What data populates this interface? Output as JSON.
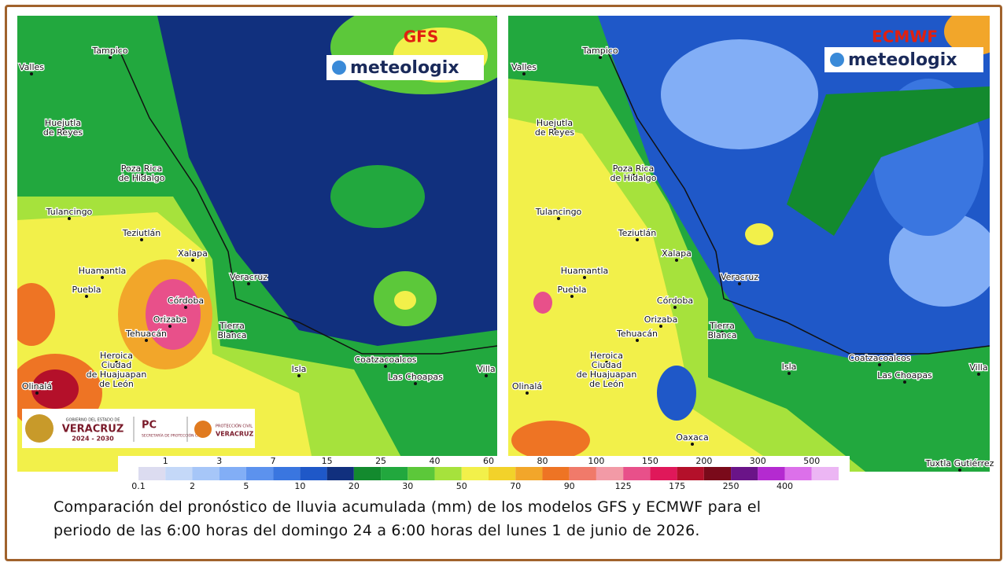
{
  "maps": [
    {
      "model": "GFS",
      "brand": "meteologix",
      "cities": [
        [
          "Tampico"
        ],
        [
          "Valles"
        ],
        [
          "Huejutla",
          "de Reyes"
        ],
        [
          "Poza Rica",
          "de Hidalgo"
        ],
        [
          "Tulancingo"
        ],
        [
          "Teziutlán"
        ],
        [
          "Xalapa"
        ],
        [
          "Huamantla"
        ],
        [
          "Veracruz"
        ],
        [
          "Puebla"
        ],
        [
          "Córdoba"
        ],
        [
          "Orizaba"
        ],
        [
          "Tehuacán"
        ],
        [
          "Tierra",
          "Blanca"
        ],
        [
          "Heroica",
          "Ciudad",
          "de Huajuapan",
          "de León"
        ],
        [
          "Isla"
        ],
        [
          "Coatzacoalcos"
        ],
        [
          "Las Choapas"
        ],
        [
          "Villa"
        ],
        [
          "Olinalá"
        ]
      ]
    },
    {
      "model": "ECMWF",
      "brand": "meteologix",
      "cities": [
        [
          "Tampico"
        ],
        [
          "Valles"
        ],
        [
          "Huejutla",
          "de Reyes"
        ],
        [
          "Poza Rica",
          "de Hidalgo"
        ],
        [
          "Tulancingo"
        ],
        [
          "Teziutlán"
        ],
        [
          "Xalapa"
        ],
        [
          "Huamantla"
        ],
        [
          "Veracruz"
        ],
        [
          "Puebla"
        ],
        [
          "Córdoba"
        ],
        [
          "Orizaba"
        ],
        [
          "Tehuacán"
        ],
        [
          "Tierra",
          "Blanca"
        ],
        [
          "Heroica",
          "Ciudad",
          "de Huajuapan",
          "de León"
        ],
        [
          "Isla"
        ],
        [
          "Coatzacoalcos"
        ],
        [
          "Las Choapas"
        ],
        [
          "Villa"
        ],
        [
          "Olinalá"
        ],
        [
          "Oaxaca"
        ],
        [
          "Tuxtla Gutiérrez"
        ]
      ]
    }
  ],
  "logo": {
    "line1": "GOBIERNO DEL ESTADO DE",
    "state": "VERACRUZ",
    "years": "2024 - 2030",
    "pc": "PC",
    "pc_sub": "SECRETARÍA DE PROTECCIÓN CIVIL",
    "pc2": "PROTECCIÓN CIVIL",
    "pc2_state": "VERACRUZ"
  },
  "colorbar": {
    "levels": [
      "0.1",
      "1",
      "2",
      "3",
      "5",
      "7",
      "10",
      "15",
      "20",
      "25",
      "30",
      "40",
      "50",
      "60",
      "70",
      "80",
      "90",
      "100",
      "125",
      "150",
      "175",
      "200",
      "250",
      "300",
      "400",
      "500"
    ],
    "colors": [
      "#dcdcf0",
      "#c4d8f8",
      "#a6c6f8",
      "#82aef6",
      "#5c92ee",
      "#3a76e0",
      "#1f58c8",
      "#11307e",
      "#138a2e",
      "#22a83e",
      "#5cc83a",
      "#a6e23c",
      "#f2f04a",
      "#f2d22a",
      "#f2a62a",
      "#ee7424",
      "#f07a6a",
      "#f29aa6",
      "#e8508a",
      "#e0185a",
      "#b4102a",
      "#7a0a1a",
      "#6a1488",
      "#b42ad0",
      "#dc70ea",
      "#ecb6f4"
    ]
  },
  "caption": [
    "Comparación del pronóstico de lluvia acumulada (mm) de los modelos GFS y ECMWF para el",
    "periodo de las 6:00 horas del domingo 24 a 6:00 horas del lunes 1 de junio de 2026."
  ]
}
